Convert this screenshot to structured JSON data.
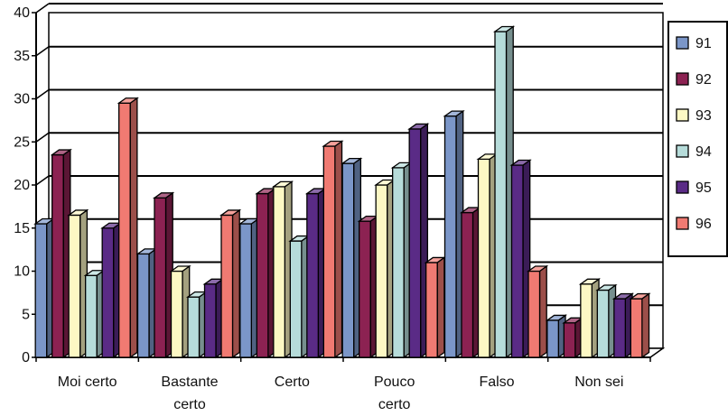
{
  "chart_data": {
    "type": "bar",
    "title": "",
    "xlabel": "",
    "ylabel": "",
    "ylim": [
      0,
      40
    ],
    "yticks": [
      0,
      5,
      10,
      15,
      20,
      25,
      30,
      35,
      40
    ],
    "grid": true,
    "legend_position": "right",
    "categories": [
      [
        "Moi certo"
      ],
      [
        "Bastante",
        "certo"
      ],
      [
        "Certo"
      ],
      [
        "Pouco",
        "certo"
      ],
      [
        "Falso"
      ],
      [
        "Non sei"
      ]
    ],
    "series": [
      {
        "name": "91",
        "color": "#7b96c8",
        "values": [
          15.5,
          12,
          15.5,
          22.5,
          28,
          4.3
        ]
      },
      {
        "name": "92",
        "color": "#8c2252",
        "values": [
          23.5,
          18.5,
          19,
          15.8,
          16.8,
          4
        ]
      },
      {
        "name": "93",
        "color": "#fcf8c4",
        "values": [
          16.5,
          10,
          19.8,
          20,
          23,
          8.5
        ]
      },
      {
        "name": "94",
        "color": "#b6dcda",
        "values": [
          9.5,
          7,
          13.5,
          22,
          37.8,
          7.8
        ]
      },
      {
        "name": "95",
        "color": "#5a2b86",
        "values": [
          15,
          8.5,
          19,
          26.5,
          22.3,
          6.8
        ]
      },
      {
        "name": "96",
        "color": "#f07a72",
        "values": [
          29.5,
          16.5,
          24.5,
          11,
          10,
          6.8
        ]
      }
    ]
  }
}
